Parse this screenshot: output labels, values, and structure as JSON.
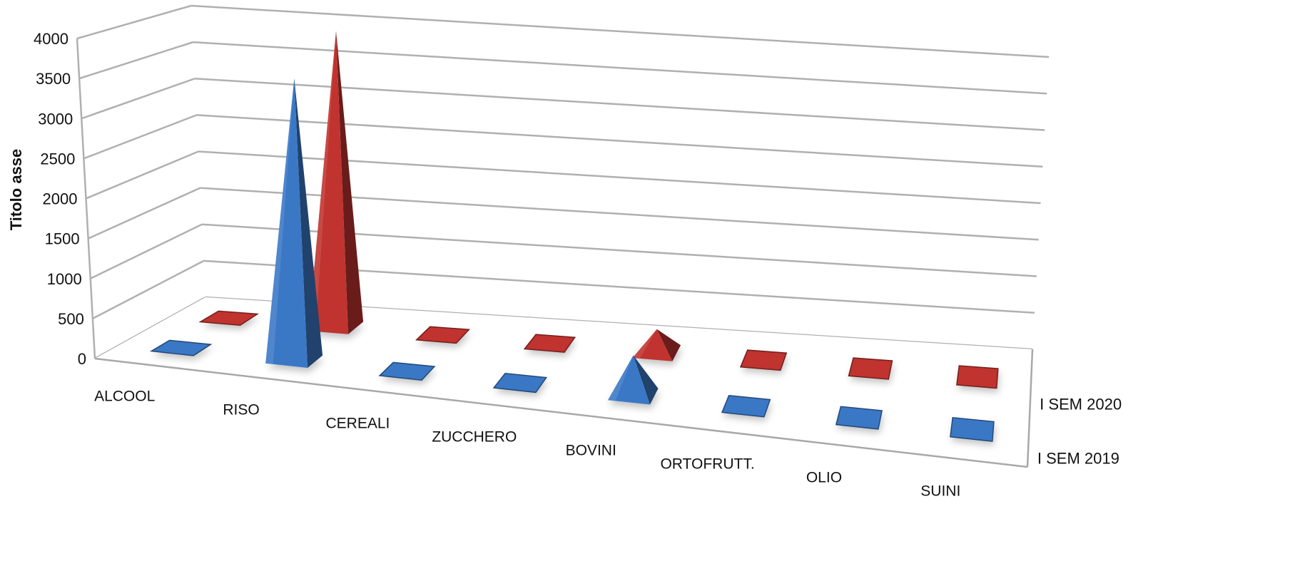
{
  "chart_data": {
    "type": "bar",
    "subtype": "3d-pyramid",
    "title": "",
    "ylabel": "Titolo asse",
    "xlabel": "",
    "ylim": [
      0,
      4000
    ],
    "ytick_labels": [
      "0",
      "500",
      "1000",
      "1500",
      "2000",
      "2500",
      "3000",
      "3500",
      "4000"
    ],
    "categories": [
      "ALCOOL",
      "RISO",
      "CEREALI",
      "ZUCCHERO",
      "BOVINI",
      "ORTOFRUTT.",
      "OLIO",
      "SUINI"
    ],
    "series": [
      {
        "name": "I SEM 2019",
        "color": "#3a78c6",
        "values": [
          0,
          3600,
          0,
          0,
          500,
          0,
          0,
          0
        ]
      },
      {
        "name": "I SEM 2020",
        "color": "#c0332f",
        "values": [
          0,
          3950,
          0,
          0,
          300,
          0,
          0,
          0
        ]
      }
    ],
    "grid": true,
    "legend": "series labels on depth axis (right)"
  }
}
